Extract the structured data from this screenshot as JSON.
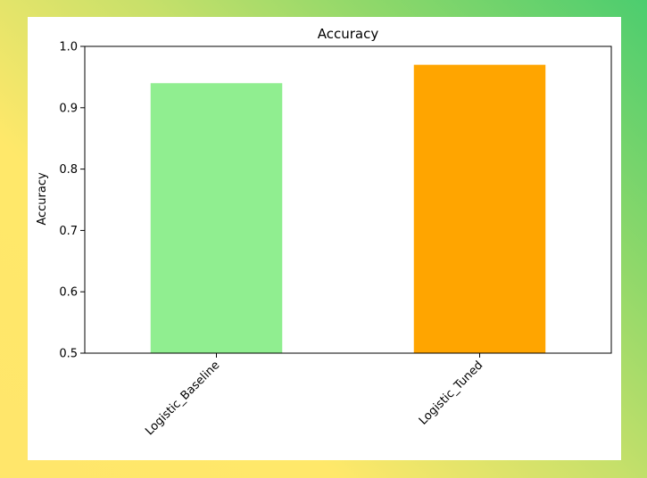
{
  "chart_data": {
    "type": "bar",
    "title": "Accuracy",
    "xlabel": "",
    "ylabel": "Accuracy",
    "categories": [
      "Logistic_Baseline",
      "Logistic_Tuned"
    ],
    "values": [
      0.94,
      0.97
    ],
    "colors": [
      "#90ee90",
      "#ffa500"
    ],
    "ylim": [
      0.5,
      1.0
    ],
    "yticks": [
      "0.5",
      "0.6",
      "0.7",
      "0.8",
      "0.9",
      "1.0"
    ],
    "grid": false,
    "legend": "none"
  }
}
